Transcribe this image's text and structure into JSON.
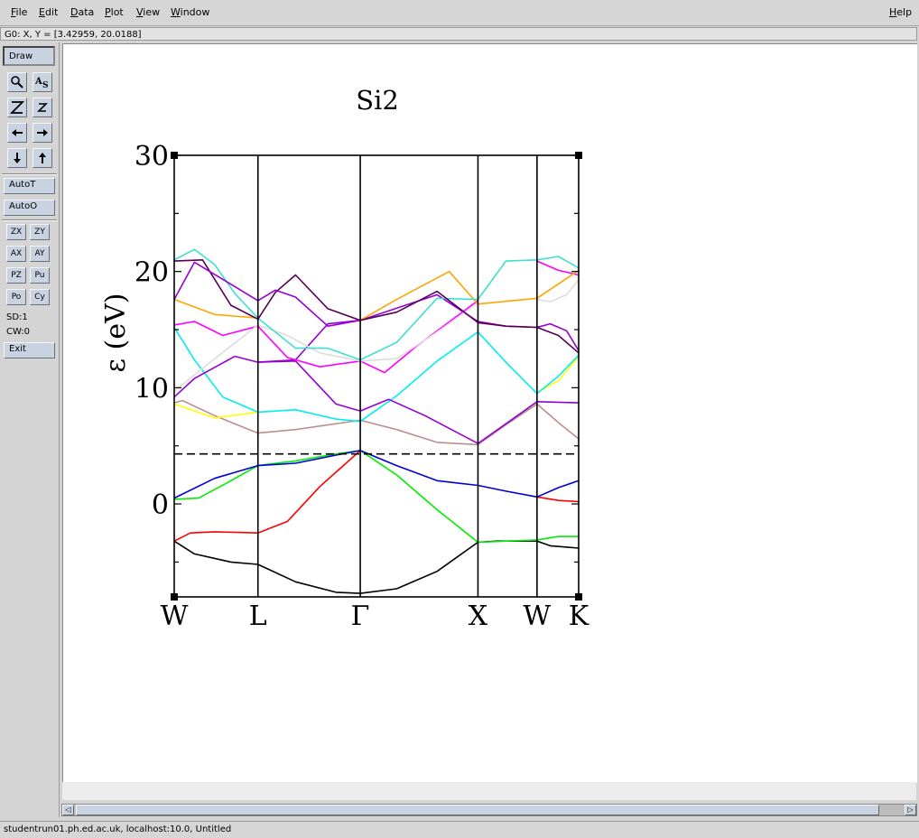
{
  "menubar": {
    "file": "File",
    "edit": "Edit",
    "data": "Data",
    "plot": "Plot",
    "view": "View",
    "window": "Window",
    "help": "Help"
  },
  "locator": {
    "text": "G0: X, Y = [3.42959, 20.0188]"
  },
  "toolbar": {
    "draw": "Draw",
    "autot": "AutoT",
    "autoo": "AutoO",
    "zx": "ZX",
    "zy": "ZY",
    "ax": "AX",
    "ay": "AY",
    "pz": "PZ",
    "pu": "Pu",
    "po": "Po",
    "cy": "Cy",
    "sd": "SD:1",
    "cw": "CW:0",
    "exit": "Exit",
    "icons": [
      "zoom-icon",
      "autoscale-text-icon",
      "zoom-z-big-icon",
      "zoom-z-small-icon",
      "arrow-left-icon",
      "arrow-right-icon",
      "arrow-down-icon",
      "arrow-up-icon"
    ]
  },
  "statusbar": {
    "text": "studentrun01.ph.ed.ac.uk, localhost:10.0, Untitled"
  },
  "chart_data": {
    "type": "line",
    "title": "Si2",
    "xlabel": "",
    "ylabel": "ε (eV)",
    "xlim": [
      0,
      1
    ],
    "ylim": [
      -8,
      30
    ],
    "yticks": [
      0,
      10,
      20,
      30
    ],
    "xticks": [
      {
        "label": "W",
        "x": 0.0
      },
      {
        "label": "L",
        "x": 0.207
      },
      {
        "label": "Γ",
        "x": 0.46
      },
      {
        "label": "X",
        "x": 0.751
      },
      {
        "label": "W",
        "x": 0.897
      },
      {
        "label": "K",
        "x": 1.0
      }
    ],
    "fermi_level": 4.3,
    "grid": false,
    "legend": "none",
    "series": [
      {
        "color": "#000000",
        "points": [
          [
            0,
            -3.2
          ],
          [
            0.05,
            -4.3
          ],
          [
            0.14,
            -5.0
          ],
          [
            0.207,
            -5.2
          ],
          [
            0.3,
            -6.7
          ],
          [
            0.4,
            -7.6
          ],
          [
            0.46,
            -7.7
          ],
          [
            0.55,
            -7.3
          ],
          [
            0.65,
            -5.8
          ],
          [
            0.751,
            -3.3
          ],
          [
            0.8,
            -3.2
          ],
          [
            0.897,
            -3.2
          ],
          [
            0.93,
            -3.6
          ],
          [
            1.0,
            -3.8
          ]
        ]
      },
      {
        "color": "#ff0000",
        "points": [
          [
            0,
            -3.2
          ],
          [
            0.04,
            -2.5
          ],
          [
            0.1,
            -2.4
          ],
          [
            0.207,
            -2.5
          ],
          [
            0.28,
            -1.5
          ],
          [
            0.36,
            1.5
          ],
          [
            0.46,
            4.6
          ]
        ]
      },
      {
        "color": "#ff0000",
        "points": [
          [
            0.897,
            0.6
          ],
          [
            0.95,
            0.3
          ],
          [
            1.0,
            0.2
          ]
        ]
      },
      {
        "color": "#00ee00",
        "points": [
          [
            0,
            0.4
          ],
          [
            0.06,
            0.5
          ],
          [
            0.13,
            1.8
          ],
          [
            0.207,
            3.3
          ],
          [
            0.3,
            3.7
          ],
          [
            0.4,
            4.3
          ],
          [
            0.46,
            4.6
          ],
          [
            0.55,
            2.5
          ],
          [
            0.65,
            -0.5
          ],
          [
            0.751,
            -3.3
          ],
          [
            0.897,
            -3.1
          ],
          [
            0.95,
            -2.8
          ],
          [
            1.0,
            -2.8
          ]
        ]
      },
      {
        "color": "#0000dd",
        "points": [
          [
            0,
            0.5
          ],
          [
            0.1,
            2.2
          ],
          [
            0.207,
            3.3
          ],
          [
            0.3,
            3.5
          ],
          [
            0.4,
            4.2
          ],
          [
            0.46,
            4.6
          ],
          [
            0.55,
            3.3
          ],
          [
            0.65,
            2.0
          ],
          [
            0.751,
            1.6
          ],
          [
            0.82,
            1.1
          ],
          [
            0.897,
            0.6
          ],
          [
            0.95,
            1.4
          ],
          [
            1.0,
            2.0
          ]
        ]
      },
      {
        "color": "#bc8f8f",
        "points": [
          [
            0,
            8.7
          ],
          [
            0.02,
            8.9
          ],
          [
            0.1,
            7.6
          ],
          [
            0.207,
            6.1
          ],
          [
            0.3,
            6.4
          ],
          [
            0.46,
            7.2
          ],
          [
            0.55,
            6.4
          ],
          [
            0.65,
            5.3
          ],
          [
            0.751,
            5.1
          ],
          [
            0.82,
            6.8
          ],
          [
            0.897,
            8.6
          ],
          [
            0.95,
            7.0
          ],
          [
            1.0,
            5.6
          ]
        ]
      },
      {
        "color": "#ffff00",
        "points": [
          [
            0,
            8.6
          ],
          [
            0.1,
            7.4
          ],
          [
            0.207,
            7.9
          ]
        ]
      },
      {
        "color": "#ffff00",
        "points": [
          [
            0.897,
            9.6
          ],
          [
            0.95,
            10.6
          ],
          [
            1.0,
            12.7
          ]
        ]
      },
      {
        "color": "#00eeee",
        "points": [
          [
            0,
            15.2
          ],
          [
            0.05,
            12.4
          ],
          [
            0.12,
            9.2
          ],
          [
            0.207,
            7.9
          ],
          [
            0.3,
            8.1
          ],
          [
            0.4,
            7.3
          ],
          [
            0.46,
            7.1
          ],
          [
            0.55,
            9.3
          ],
          [
            0.65,
            12.3
          ],
          [
            0.751,
            14.8
          ],
          [
            0.82,
            12.2
          ],
          [
            0.897,
            9.5
          ],
          [
            0.95,
            11.0
          ],
          [
            1.0,
            12.8
          ]
        ]
      },
      {
        "color": "#9400d3",
        "points": [
          [
            0,
            9.2
          ],
          [
            0.05,
            10.8
          ],
          [
            0.15,
            12.7
          ],
          [
            0.207,
            12.2
          ],
          [
            0.3,
            12.3
          ],
          [
            0.4,
            8.6
          ],
          [
            0.46,
            8.0
          ],
          [
            0.53,
            9.0
          ],
          [
            0.62,
            7.6
          ],
          [
            0.751,
            5.2
          ],
          [
            0.82,
            6.9
          ],
          [
            0.897,
            8.8
          ],
          [
            1.0,
            8.7
          ]
        ]
      },
      {
        "color": "#9400d3",
        "points": [
          [
            0.207,
            12.2
          ],
          [
            0.3,
            12.4
          ],
          [
            0.38,
            15.5
          ],
          [
            0.46,
            15.8
          ],
          [
            0.52,
            16.5
          ],
          [
            0.65,
            18.0
          ],
          [
            0.751,
            15.7
          ],
          [
            0.82,
            15.3
          ],
          [
            0.897,
            15.2
          ],
          [
            0.93,
            15.5
          ],
          [
            0.97,
            14.9
          ],
          [
            1.0,
            13.2
          ]
        ]
      },
      {
        "color": "#ff00ff",
        "points": [
          [
            0,
            15.4
          ],
          [
            0.05,
            15.7
          ],
          [
            0.12,
            14.5
          ],
          [
            0.207,
            15.3
          ],
          [
            0.28,
            12.6
          ],
          [
            0.36,
            11.8
          ],
          [
            0.46,
            12.3
          ],
          [
            0.52,
            11.3
          ],
          [
            0.6,
            13.6
          ],
          [
            0.751,
            17.5
          ]
        ]
      },
      {
        "color": "#ff00ff",
        "points": [
          [
            0.897,
            20.9
          ],
          [
            0.95,
            20.1
          ],
          [
            1.0,
            19.7
          ]
        ]
      },
      {
        "color": "#dddddd",
        "points": [
          [
            0,
            9.7
          ],
          [
            0.1,
            12.5
          ],
          [
            0.207,
            15.4
          ],
          [
            0.28,
            14.5
          ],
          [
            0.36,
            13.0
          ],
          [
            0.46,
            12.3
          ],
          [
            0.55,
            12.5
          ],
          [
            0.65,
            14.8
          ],
          [
            0.751,
            17.3
          ]
        ]
      },
      {
        "color": "#dddddd",
        "points": [
          [
            0.897,
            17.6
          ],
          [
            0.93,
            17.4
          ],
          [
            0.97,
            18.0
          ],
          [
            1.0,
            19.3
          ]
        ]
      },
      {
        "color": "#ffa500",
        "points": [
          [
            0,
            17.6
          ],
          [
            0.1,
            16.3
          ],
          [
            0.207,
            16.0
          ]
        ]
      },
      {
        "color": "#ffa500",
        "points": [
          [
            0.46,
            15.8
          ],
          [
            0.55,
            17.6
          ],
          [
            0.68,
            20.0
          ],
          [
            0.751,
            17.2
          ],
          [
            0.897,
            17.7
          ],
          [
            1.0,
            20.1
          ]
        ]
      },
      {
        "color": "#40e0d0",
        "points": [
          [
            0,
            21.0
          ],
          [
            0.05,
            21.9
          ],
          [
            0.1,
            20.6
          ],
          [
            0.15,
            18.1
          ],
          [
            0.207,
            16.0
          ],
          [
            0.3,
            13.4
          ],
          [
            0.38,
            13.4
          ],
          [
            0.46,
            12.4
          ],
          [
            0.55,
            13.9
          ],
          [
            0.65,
            17.7
          ],
          [
            0.751,
            17.6
          ],
          [
            0.82,
            20.9
          ],
          [
            0.897,
            21.0
          ],
          [
            0.95,
            21.3
          ],
          [
            1.0,
            20.3
          ]
        ]
      },
      {
        "color": "#550055",
        "points": [
          [
            0,
            20.9
          ],
          [
            0.07,
            21.0
          ],
          [
            0.14,
            17.1
          ],
          [
            0.207,
            15.9
          ],
          [
            0.25,
            18.2
          ],
          [
            0.3,
            19.7
          ],
          [
            0.38,
            16.8
          ],
          [
            0.46,
            15.8
          ],
          [
            0.55,
            16.5
          ],
          [
            0.65,
            18.3
          ],
          [
            0.751,
            15.6
          ],
          [
            0.82,
            15.3
          ],
          [
            0.897,
            15.2
          ],
          [
            0.95,
            14.5
          ],
          [
            1.0,
            13.0
          ]
        ]
      },
      {
        "color": "#9400d3",
        "points": [
          [
            0,
            17.6
          ],
          [
            0.05,
            20.8
          ],
          [
            0.15,
            18.7
          ],
          [
            0.207,
            17.5
          ],
          [
            0.25,
            18.4
          ],
          [
            0.3,
            17.8
          ],
          [
            0.38,
            15.3
          ],
          [
            0.46,
            15.8
          ]
        ]
      }
    ]
  }
}
